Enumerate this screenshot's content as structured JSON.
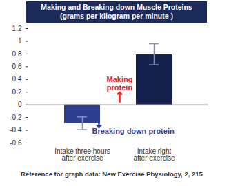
{
  "chart_data": {
    "type": "bar",
    "title": "Making and Breaking down Muscle Proteins",
    "subtitle": "(grams per kilogram per minute )",
    "categories": [
      "Intake three hours\nafter exercise",
      "Intake right\nafter exercise"
    ],
    "values": [
      -0.29,
      0.79
    ],
    "error_low": [
      -0.39,
      0.63
    ],
    "error_high": [
      -0.19,
      0.96
    ],
    "colors": [
      "#2e3f8f",
      "#16204d"
    ],
    "ylim": [
      -0.6,
      1.2
    ],
    "yticks": [
      -0.6,
      -0.4,
      -0.2,
      0,
      0.2,
      0.4,
      0.6,
      0.8,
      1,
      1.2
    ],
    "grid": false,
    "annotations": [
      {
        "text": "Breaking down protein",
        "category": "Intake three hours\nafter exercise",
        "color": "#2e3f8f"
      },
      {
        "text": "Making\nprotein",
        "category": "Intake right\nafter exercise",
        "color": "#e8262a"
      }
    ],
    "source": "Reference for graph data: New Exercise Physiology, 2, 215"
  }
}
